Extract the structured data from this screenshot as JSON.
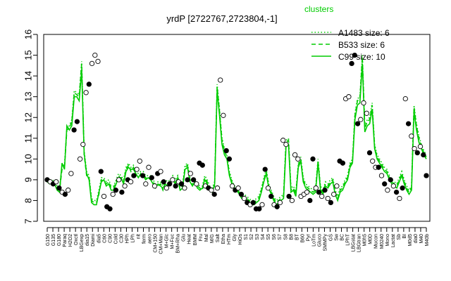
{
  "chart_data": {
    "type": "line",
    "title": "yrdP [2722767,2723804,-1]",
    "xlabel": "",
    "ylabel": "",
    "ylim": [
      7,
      16
    ],
    "yticks": [
      7,
      8,
      9,
      10,
      11,
      12,
      13,
      14,
      15,
      16
    ],
    "grid": false,
    "legend": {
      "title": "clusters",
      "position": "top-right",
      "color": "#00cc00",
      "entries": [
        {
          "label": "A1483 size: 6",
          "style": "dotted"
        },
        {
          "label": "B533 size: 6",
          "style": "dashed"
        },
        {
          "label": "C99 size: 10",
          "style": "solid"
        }
      ]
    },
    "x_tick_labels": [
      "G150",
      "G135",
      "G180",
      "Paraq",
      "H2O2",
      "Oxctl",
      "LBGexp",
      "dia15",
      "Diami",
      "dia5",
      "C60",
      "C90",
      "Cold",
      "C30",
      "HPh",
      "LPh",
      "nit",
      "ferm",
      "aero",
      "CM+150",
      "CM+Man",
      "M+Glc",
      "M+Fuc",
      "BM+Rha",
      "Glu",
      "Heat",
      "BMM",
      "Fru",
      "Mal",
      "M/G",
      "Salt",
      "Etha",
      "HTm",
      "Gly",
      "HiOs",
      "S1",
      "S2",
      "S3",
      "S4",
      "S5",
      "S6",
      "S7",
      "S8",
      "B8",
      "BT",
      "B60",
      "Pyr",
      "LoTm",
      "Gluco",
      "SMMPy",
      "GS",
      "Sw",
      "BC",
      "LPhT",
      "LBGstat",
      "LBGtran",
      "M0h5",
      "M0D",
      "Mucon",
      "M0240",
      "Mono",
      "Lactat",
      "Sb",
      "BI",
      "M0d5",
      "dia0",
      "M40",
      "M40b"
    ],
    "series": [
      {
        "style": "solid",
        "color": "#00cc00",
        "values": [
          9.0,
          8.9,
          8.9,
          8.8,
          8.5,
          8.4,
          9.8,
          9.5,
          11.6,
          11.4,
          11.6,
          13.0,
          13.0,
          12.8,
          14.3,
          10.3,
          9.3,
          9.0,
          7.9,
          7.8,
          7.8,
          8.4,
          8.9,
          9.0,
          8.7,
          8.8,
          8.5,
          8.5,
          8.8,
          9.1,
          9.1,
          8.8,
          9.4,
          9.6,
          9.5,
          9.5,
          9.3,
          9.1,
          9.3,
          9.2,
          9.0,
          9.1,
          9.0,
          8.8,
          8.6,
          8.8,
          8.7,
          8.6,
          8.8,
          8.7,
          8.9,
          9.0,
          8.8,
          9.1,
          8.5,
          8.6,
          9.5,
          9.6,
          8.9,
          8.7,
          8.9,
          8.6,
          8.5,
          8.6,
          9.0,
          8.8,
          8.5,
          8.4,
          8.8,
          13.3,
          12.1,
          10.7,
          10.2,
          10.0,
          9.2,
          8.8,
          8.5,
          8.5,
          8.3,
          8.1,
          8.1,
          8.0,
          7.9,
          7.8,
          7.8,
          7.9,
          8.0,
          8.4,
          8.9,
          9.3,
          8.6,
          8.3,
          8.0,
          7.8,
          7.9,
          8.0,
          8.1,
          10.6,
          10.7,
          8.4,
          8.5,
          8.2,
          9.6,
          9.9,
          8.9,
          8.6,
          8.5,
          8.4,
          8.3,
          8.4,
          9.8,
          8.5,
          8.3,
          8.7,
          8.6,
          8.8,
          8.9,
          8.3,
          8.0,
          8.4,
          8.5,
          8.8,
          9.0,
          9.6,
          9.8,
          11.9,
          12.6,
          12.7,
          14.6,
          11.3,
          11.6,
          11.7,
          12.4,
          10.5,
          10.0,
          9.8,
          9.6,
          9.4,
          9.3,
          9.0,
          8.8,
          8.7,
          8.6,
          8.9,
          9.2,
          8.8,
          8.5,
          8.3,
          8.5,
          12.3,
          11.4,
          10.8,
          10.5,
          10.2,
          10.0
        ]
      },
      {
        "style": "dashed",
        "color": "#00cc00",
        "values": [
          8.9,
          8.8,
          8.9,
          8.7,
          8.6,
          8.5,
          9.5,
          9.6,
          11.4,
          11.5,
          11.8,
          13.2,
          13.1,
          13.0,
          14.6,
          10.2,
          9.2,
          9.1,
          8.0,
          7.9,
          7.9,
          8.3,
          9.0,
          8.9,
          8.8,
          8.9,
          8.6,
          8.6,
          8.9,
          9.2,
          9.0,
          8.9,
          9.5,
          9.7,
          9.4,
          9.6,
          9.2,
          9.2,
          9.2,
          9.3,
          9.1,
          9.0,
          9.1,
          8.9,
          8.7,
          8.7,
          8.8,
          8.5,
          8.9,
          8.8,
          8.8,
          9.1,
          8.9,
          9.0,
          8.6,
          8.7,
          9.6,
          9.7,
          9.0,
          8.8,
          8.8,
          8.7,
          8.6,
          8.5,
          9.1,
          8.9,
          8.6,
          8.5,
          8.7,
          13.5,
          12.3,
          10.9,
          10.4,
          10.1,
          9.3,
          8.9,
          8.6,
          8.6,
          8.4,
          8.2,
          8.2,
          8.1,
          8.0,
          7.9,
          7.9,
          8.0,
          8.1,
          8.5,
          9.0,
          9.4,
          8.7,
          8.4,
          8.1,
          7.9,
          8.0,
          8.1,
          8.2,
          10.8,
          10.9,
          8.5,
          8.6,
          8.3,
          9.7,
          10.0,
          9.0,
          8.7,
          8.6,
          8.5,
          8.4,
          8.5,
          9.9,
          8.6,
          8.4,
          8.8,
          8.7,
          8.9,
          9.0,
          8.4,
          8.1,
          8.5,
          8.6,
          8.9,
          9.1,
          9.7,
          9.9,
          12.1,
          12.8,
          12.9,
          14.9,
          11.5,
          11.8,
          11.9,
          12.6,
          10.6,
          10.1,
          9.9,
          9.7,
          9.5,
          9.4,
          9.1,
          8.9,
          8.8,
          8.7,
          9.0,
          9.3,
          8.9,
          8.6,
          8.4,
          8.6,
          12.5,
          11.6,
          11.0,
          10.6,
          10.3,
          10.1
        ]
      },
      {
        "style": "dotted",
        "color": "#00cc00",
        "values": [
          9.1,
          9.0,
          9.0,
          8.9,
          8.7,
          8.6,
          9.7,
          9.7,
          11.5,
          11.6,
          11.9,
          13.3,
          13.2,
          13.1,
          14.7,
          10.4,
          9.4,
          9.2,
          8.1,
          8.0,
          8.0,
          8.5,
          9.1,
          9.1,
          8.9,
          9.0,
          8.7,
          8.7,
          9.0,
          9.3,
          9.2,
          9.0,
          9.6,
          9.8,
          9.6,
          9.7,
          9.4,
          9.3,
          9.4,
          9.4,
          9.2,
          9.2,
          9.2,
          9.0,
          8.8,
          8.9,
          8.9,
          8.7,
          9.0,
          8.9,
          9.0,
          9.2,
          9.0,
          9.2,
          8.7,
          8.8,
          9.7,
          9.8,
          9.1,
          8.9,
          9.0,
          8.8,
          8.7,
          8.7,
          9.2,
          9.0,
          8.7,
          8.6,
          8.9,
          13.6,
          12.4,
          11.0,
          10.5,
          10.2,
          9.4,
          9.0,
          8.7,
          8.7,
          8.5,
          8.3,
          8.3,
          8.2,
          8.1,
          8.0,
          8.0,
          8.1,
          8.2,
          8.6,
          9.1,
          9.5,
          8.8,
          8.5,
          8.2,
          8.0,
          8.1,
          8.2,
          8.3,
          10.9,
          11.0,
          8.6,
          8.7,
          8.4,
          9.8,
          10.1,
          9.1,
          8.8,
          8.7,
          8.6,
          8.5,
          8.6,
          10.0,
          8.7,
          8.5,
          8.9,
          8.8,
          9.0,
          9.1,
          8.5,
          8.2,
          8.6,
          8.7,
          9.0,
          9.2,
          9.8,
          10.0,
          12.2,
          12.9,
          13.0,
          15.0,
          11.6,
          11.9,
          12.0,
          12.7,
          10.7,
          10.2,
          10.0,
          9.8,
          9.6,
          9.5,
          9.2,
          9.0,
          8.9,
          8.8,
          9.1,
          9.4,
          9.0,
          8.7,
          8.5,
          8.7,
          12.6,
          11.7,
          11.1,
          10.7,
          10.4,
          10.2
        ]
      }
    ],
    "points": [
      {
        "x": 0,
        "y": 9.0,
        "filled": true
      },
      {
        "x": 1,
        "y": 8.9,
        "filled": false
      },
      {
        "x": 2,
        "y": 8.8,
        "filled": true
      },
      {
        "x": 3,
        "y": 8.9,
        "filled": false
      },
      {
        "x": 4,
        "y": 8.6,
        "filled": true
      },
      {
        "x": 5,
        "y": 8.4,
        "filled": false
      },
      {
        "x": 6,
        "y": 8.3,
        "filled": true
      },
      {
        "x": 7,
        "y": 8.5,
        "filled": false
      },
      {
        "x": 8,
        "y": 9.3,
        "filled": false
      },
      {
        "x": 9,
        "y": 11.4,
        "filled": true
      },
      {
        "x": 10,
        "y": 11.8,
        "filled": true
      },
      {
        "x": 11,
        "y": 10.0,
        "filled": false
      },
      {
        "x": 12,
        "y": 10.7,
        "filled": false
      },
      {
        "x": 13,
        "y": 13.2,
        "filled": false
      },
      {
        "x": 14,
        "y": 13.6,
        "filled": true
      },
      {
        "x": 15,
        "y": 14.6,
        "filled": false
      },
      {
        "x": 16,
        "y": 15.0,
        "filled": false
      },
      {
        "x": 17,
        "y": 14.7,
        "filled": false
      },
      {
        "x": 18,
        "y": 9.4,
        "filled": true
      },
      {
        "x": 19,
        "y": 8.2,
        "filled": false
      },
      {
        "x": 20,
        "y": 7.7,
        "filled": true
      },
      {
        "x": 21,
        "y": 7.6,
        "filled": true
      },
      {
        "x": 22,
        "y": 8.3,
        "filled": false
      },
      {
        "x": 23,
        "y": 8.5,
        "filled": true
      },
      {
        "x": 24,
        "y": 9.0,
        "filled": false
      },
      {
        "x": 25,
        "y": 8.4,
        "filled": true
      },
      {
        "x": 26,
        "y": 8.7,
        "filled": false
      },
      {
        "x": 27,
        "y": 9.0,
        "filled": true
      },
      {
        "x": 28,
        "y": 8.9,
        "filled": false
      },
      {
        "x": 29,
        "y": 9.2,
        "filled": true
      },
      {
        "x": 30,
        "y": 9.5,
        "filled": false
      },
      {
        "x": 31,
        "y": 9.9,
        "filled": false
      },
      {
        "x": 32,
        "y": 9.2,
        "filled": true
      },
      {
        "x": 33,
        "y": 8.8,
        "filled": false
      },
      {
        "x": 34,
        "y": 9.6,
        "filled": false
      },
      {
        "x": 35,
        "y": 9.1,
        "filled": true
      },
      {
        "x": 36,
        "y": 8.7,
        "filled": false
      },
      {
        "x": 37,
        "y": 9.3,
        "filled": true
      },
      {
        "x": 38,
        "y": 9.4,
        "filled": false
      },
      {
        "x": 39,
        "y": 8.9,
        "filled": true
      },
      {
        "x": 40,
        "y": 8.6,
        "filled": false
      },
      {
        "x": 41,
        "y": 8.8,
        "filled": true
      },
      {
        "x": 42,
        "y": 9.0,
        "filled": false
      },
      {
        "x": 43,
        "y": 8.7,
        "filled": true
      },
      {
        "x": 44,
        "y": 8.9,
        "filled": false
      },
      {
        "x": 45,
        "y": 8.8,
        "filled": true
      },
      {
        "x": 46,
        "y": 8.6,
        "filled": false
      },
      {
        "x": 47,
        "y": 9.0,
        "filled": true
      },
      {
        "x": 48,
        "y": 9.3,
        "filled": false
      },
      {
        "x": 49,
        "y": 9.0,
        "filled": true
      },
      {
        "x": 50,
        "y": 8.8,
        "filled": false
      },
      {
        "x": 51,
        "y": 9.8,
        "filled": true
      },
      {
        "x": 52,
        "y": 9.7,
        "filled": true
      },
      {
        "x": 53,
        "y": 8.7,
        "filled": false
      },
      {
        "x": 54,
        "y": 8.6,
        "filled": true
      },
      {
        "x": 55,
        "y": 8.5,
        "filled": false
      },
      {
        "x": 56,
        "y": 8.3,
        "filled": true
      },
      {
        "x": 57,
        "y": 8.6,
        "filled": false
      },
      {
        "x": 58,
        "y": 13.8,
        "filled": false
      },
      {
        "x": 59,
        "y": 12.1,
        "filled": false
      },
      {
        "x": 60,
        "y": 10.4,
        "filled": true
      },
      {
        "x": 61,
        "y": 10.0,
        "filled": true
      },
      {
        "x": 62,
        "y": 8.7,
        "filled": false
      },
      {
        "x": 63,
        "y": 8.5,
        "filled": true
      },
      {
        "x": 64,
        "y": 8.6,
        "filled": false
      },
      {
        "x": 65,
        "y": 8.3,
        "filled": true
      },
      {
        "x": 66,
        "y": 8.1,
        "filled": false
      },
      {
        "x": 67,
        "y": 7.9,
        "filled": true
      },
      {
        "x": 68,
        "y": 7.8,
        "filled": false
      },
      {
        "x": 69,
        "y": 7.9,
        "filled": true
      },
      {
        "x": 70,
        "y": 7.6,
        "filled": true
      },
      {
        "x": 71,
        "y": 7.6,
        "filled": true
      },
      {
        "x": 72,
        "y": 7.8,
        "filled": false
      },
      {
        "x": 73,
        "y": 9.5,
        "filled": true
      },
      {
        "x": 74,
        "y": 8.6,
        "filled": false
      },
      {
        "x": 75,
        "y": 8.2,
        "filled": true
      },
      {
        "x": 76,
        "y": 7.8,
        "filled": false
      },
      {
        "x": 77,
        "y": 7.7,
        "filled": true
      },
      {
        "x": 78,
        "y": 7.9,
        "filled": false
      },
      {
        "x": 79,
        "y": 10.9,
        "filled": false
      },
      {
        "x": 80,
        "y": 10.7,
        "filled": false
      },
      {
        "x": 81,
        "y": 8.2,
        "filled": true
      },
      {
        "x": 82,
        "y": 8.0,
        "filled": false
      },
      {
        "x": 83,
        "y": 10.2,
        "filled": false
      },
      {
        "x": 84,
        "y": 10.0,
        "filled": false
      },
      {
        "x": 85,
        "y": 8.2,
        "filled": false
      },
      {
        "x": 86,
        "y": 8.3,
        "filled": false
      },
      {
        "x": 87,
        "y": 8.4,
        "filled": false
      },
      {
        "x": 88,
        "y": 8.0,
        "filled": true
      },
      {
        "x": 89,
        "y": 10.0,
        "filled": true
      },
      {
        "x": 90,
        "y": 8.6,
        "filled": false
      },
      {
        "x": 91,
        "y": 8.4,
        "filled": true
      },
      {
        "x": 92,
        "y": 8.2,
        "filled": false
      },
      {
        "x": 93,
        "y": 8.5,
        "filled": true
      },
      {
        "x": 94,
        "y": 8.1,
        "filled": false
      },
      {
        "x": 95,
        "y": 7.9,
        "filled": true
      },
      {
        "x": 96,
        "y": 8.3,
        "filled": false
      },
      {
        "x": 97,
        "y": 8.7,
        "filled": false
      },
      {
        "x": 98,
        "y": 9.9,
        "filled": true
      },
      {
        "x": 99,
        "y": 9.8,
        "filled": true
      },
      {
        "x": 100,
        "y": 12.9,
        "filled": false
      },
      {
        "x": 101,
        "y": 13.0,
        "filled": false
      },
      {
        "x": 102,
        "y": 14.6,
        "filled": true
      },
      {
        "x": 103,
        "y": 15.0,
        "filled": true
      },
      {
        "x": 104,
        "y": 11.7,
        "filled": true
      },
      {
        "x": 105,
        "y": 11.9,
        "filled": false
      },
      {
        "x": 106,
        "y": 12.7,
        "filled": false
      },
      {
        "x": 107,
        "y": 12.2,
        "filled": false
      },
      {
        "x": 108,
        "y": 10.3,
        "filled": true
      },
      {
        "x": 109,
        "y": 9.9,
        "filled": false
      },
      {
        "x": 110,
        "y": 9.6,
        "filled": false
      },
      {
        "x": 111,
        "y": 9.6,
        "filled": true
      },
      {
        "x": 112,
        "y": 9.2,
        "filled": false
      },
      {
        "x": 113,
        "y": 8.8,
        "filled": true
      },
      {
        "x": 114,
        "y": 8.5,
        "filled": false
      },
      {
        "x": 115,
        "y": 9.0,
        "filled": true
      },
      {
        "x": 116,
        "y": 8.7,
        "filled": false
      },
      {
        "x": 117,
        "y": 8.4,
        "filled": true
      },
      {
        "x": 118,
        "y": 8.1,
        "filled": false
      },
      {
        "x": 119,
        "y": 8.6,
        "filled": true
      },
      {
        "x": 120,
        "y": 12.9,
        "filled": false
      },
      {
        "x": 121,
        "y": 11.7,
        "filled": true
      },
      {
        "x": 122,
        "y": 11.1,
        "filled": false
      },
      {
        "x": 123,
        "y": 10.5,
        "filled": false
      },
      {
        "x": 124,
        "y": 10.3,
        "filled": true
      },
      {
        "x": 125,
        "y": 10.6,
        "filled": false
      },
      {
        "x": 126,
        "y": 10.2,
        "filled": true
      },
      {
        "x": 127,
        "y": 9.2,
        "filled": true
      }
    ]
  }
}
